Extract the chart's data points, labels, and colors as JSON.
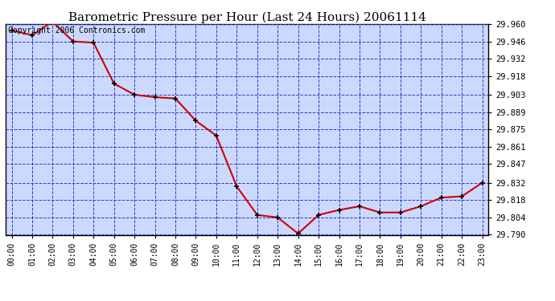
{
  "title": "Barometric Pressure per Hour (Last 24 Hours) 20061114",
  "copyright": "Copyright 2006 Contronics.com",
  "hours": [
    0,
    1,
    2,
    3,
    4,
    5,
    6,
    7,
    8,
    9,
    10,
    11,
    12,
    13,
    14,
    15,
    16,
    17,
    18,
    19,
    20,
    21,
    22,
    23
  ],
  "values": [
    29.955,
    29.951,
    29.962,
    29.946,
    29.945,
    29.912,
    29.903,
    29.901,
    29.9,
    29.882,
    29.87,
    29.829,
    29.806,
    29.804,
    29.791,
    29.806,
    29.81,
    29.813,
    29.808,
    29.808,
    29.813,
    29.82,
    29.821,
    29.832
  ],
  "ylim_min": 29.79,
  "ylim_max": 29.96,
  "yticks": [
    29.79,
    29.804,
    29.818,
    29.832,
    29.847,
    29.861,
    29.875,
    29.889,
    29.903,
    29.918,
    29.932,
    29.946,
    29.96
  ],
  "line_color": "#cc0000",
  "marker_color": "#000000",
  "bg_color": "#ffffff",
  "plot_bg_color": "#ccd9ff",
  "grid_color": "#3333cc",
  "title_color": "#000000",
  "title_fontsize": 11,
  "copyright_fontsize": 7,
  "tick_label_color": "#000000",
  "tick_fontsize": 7,
  "ytick_fontsize": 7.5
}
